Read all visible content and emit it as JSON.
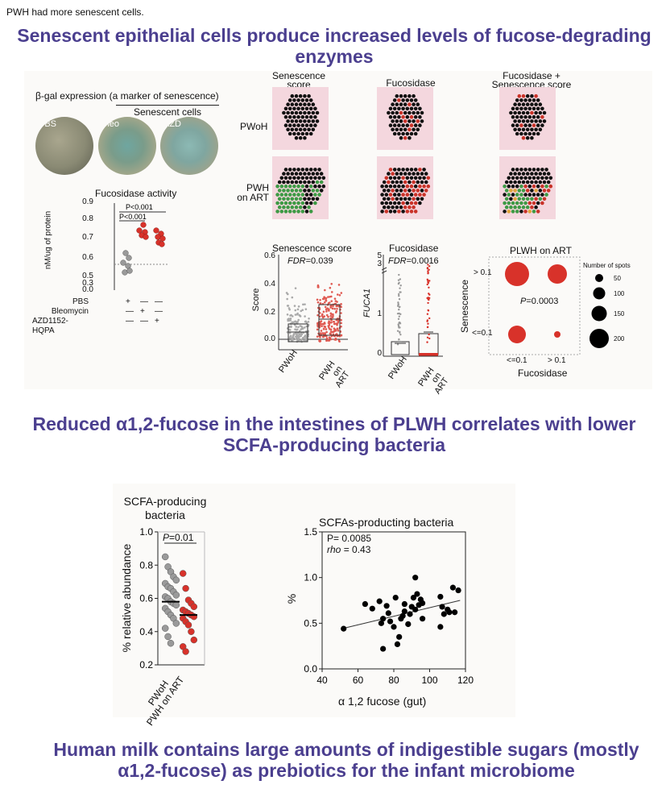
{
  "note": "PWH had more senescent cells.",
  "headings": {
    "h1": "Senescent epithelial cells produce increased levels of fucose-degrading enzymes",
    "h2": "Reduced α1,2-fucose in the intestines of PLWH correlates with lower SCFA-producing bacteria",
    "h3": "Human milk contains large amounts of indigestible sugars (mostly α1,2-fucose) as prebiotics for the infant microbiome"
  },
  "bgal": {
    "title": "β-gal expression (a marker of senescence)",
    "group": "Senescent cells",
    "images": [
      "PBS",
      "Bleo",
      "AZD"
    ]
  },
  "fuc_activity": {
    "title": "Fucosidase activity",
    "ylabel": "nM/ug of protein",
    "p1": "P<0.001",
    "p2": "P<0.001",
    "yticks": [
      "0.9",
      "0.8",
      "0.7",
      "0.6",
      "0.5",
      "0.3",
      "0.0"
    ],
    "rows": [
      {
        "label": "PBS",
        "marks": [
          "+",
          "—",
          "—"
        ]
      },
      {
        "label": "Bleomycin",
        "marks": [
          "—",
          "+",
          "—"
        ]
      },
      {
        "label": "AZD1152-HQPA",
        "marks": [
          "—",
          "—",
          "+"
        ]
      }
    ]
  },
  "spatial": {
    "col_titles": [
      "Senescence score",
      "Fucosidase",
      "Fucosidase + Senescence score"
    ],
    "row_labels": [
      "PWoH",
      "PWH on ART"
    ]
  },
  "sen_box": {
    "title": "Senescence score",
    "fdr_label": "FDR",
    "fdr_value": "=0.039",
    "ylabel": "Score",
    "yticks": [
      "0.6",
      "0.4",
      "0.2",
      "0.0"
    ],
    "xlabels": [
      "PWoH",
      "PWH on ART"
    ]
  },
  "fuc_box": {
    "title": "Fucosidase",
    "fdr_label": "FDR",
    "fdr_value": "=0.0016",
    "ylabel": "FUCA1",
    "yticks": [
      "5",
      "3",
      "1",
      "0"
    ],
    "xlabels": [
      "PWoH",
      "PWH on ART"
    ]
  },
  "bubble": {
    "title": "PLWH on ART",
    "ylabel": "Senescence",
    "xlabel": "Fucosidase",
    "yticks": [
      "> 0.1",
      "<=0.1"
    ],
    "xticks": [
      "<=0.1",
      "> 0.1"
    ],
    "p_label": "P",
    "p_value": "=0.0003",
    "legend_title": "Number of spots",
    "legend": [
      "50",
      "100",
      "150",
      "200"
    ]
  },
  "chart_data": [
    {
      "type": "scatter",
      "title": "SCFA-producing bacteria",
      "ylabel": "% relative abundance",
      "categories": [
        "PWoH",
        "PWH on ART"
      ],
      "ylim": [
        0.2,
        1.0
      ],
      "yticks": [
        "1.0",
        "0.8",
        "0.6",
        "0.4",
        "0.2"
      ],
      "p_label": "P",
      "p_value": "=0.01",
      "series": [
        {
          "name": "PWoH",
          "color": "#9a9a9a",
          "median": 0.58,
          "values": [
            0.85,
            0.79,
            0.76,
            0.73,
            0.71,
            0.69,
            0.67,
            0.66,
            0.64,
            0.62,
            0.61,
            0.6,
            0.58,
            0.57,
            0.56,
            0.54,
            0.52,
            0.5,
            0.48,
            0.45,
            0.42,
            0.37,
            0.33
          ]
        },
        {
          "name": "PWH on ART",
          "color": "#d8322a",
          "median": 0.5,
          "values": [
            0.75,
            0.66,
            0.59,
            0.57,
            0.55,
            0.53,
            0.52,
            0.51,
            0.5,
            0.49,
            0.48,
            0.46,
            0.44,
            0.4,
            0.35,
            0.31,
            0.28
          ]
        }
      ]
    },
    {
      "type": "scatter",
      "title": "SCFAs-producting bacteria",
      "xlabel": "α 1,2 fucose (gut)",
      "ylabel": "%",
      "xlim": [
        40,
        120
      ],
      "ylim": [
        0,
        1.5
      ],
      "xticks": [
        "40",
        "60",
        "80",
        "100",
        "120"
      ],
      "yticks": [
        "1.5",
        "1.0",
        "0.5",
        "0.0"
      ],
      "p_text": "P= 0.0085",
      "rho_label": "rho",
      "rho_value": "= 0.43",
      "trend": [
        [
          51,
          0.44
        ],
        [
          117,
          0.75
        ]
      ],
      "points": [
        [
          52,
          0.44
        ],
        [
          64,
          0.71
        ],
        [
          68,
          0.66
        ],
        [
          72,
          0.74
        ],
        [
          73,
          0.5
        ],
        [
          74,
          0.22
        ],
        [
          74,
          0.55
        ],
        [
          76,
          0.69
        ],
        [
          77,
          0.61
        ],
        [
          78,
          0.52
        ],
        [
          80,
          0.46
        ],
        [
          81,
          0.78
        ],
        [
          82,
          0.27
        ],
        [
          83,
          0.35
        ],
        [
          84,
          0.55
        ],
        [
          85,
          0.58
        ],
        [
          86,
          0.63
        ],
        [
          86,
          0.71
        ],
        [
          88,
          0.49
        ],
        [
          89,
          0.6
        ],
        [
          90,
          0.68
        ],
        [
          91,
          0.78
        ],
        [
          92,
          1.0
        ],
        [
          92,
          0.65
        ],
        [
          93,
          0.82
        ],
        [
          94,
          0.7
        ],
        [
          95,
          0.76
        ],
        [
          96,
          0.55
        ],
        [
          96,
          0.72
        ],
        [
          106,
          0.79
        ],
        [
          106,
          0.46
        ],
        [
          107,
          0.68
        ],
        [
          108,
          0.6
        ],
        [
          110,
          0.65
        ],
        [
          111,
          0.62
        ],
        [
          113,
          0.89
        ],
        [
          114,
          0.62
        ],
        [
          116,
          0.86
        ]
      ]
    }
  ]
}
